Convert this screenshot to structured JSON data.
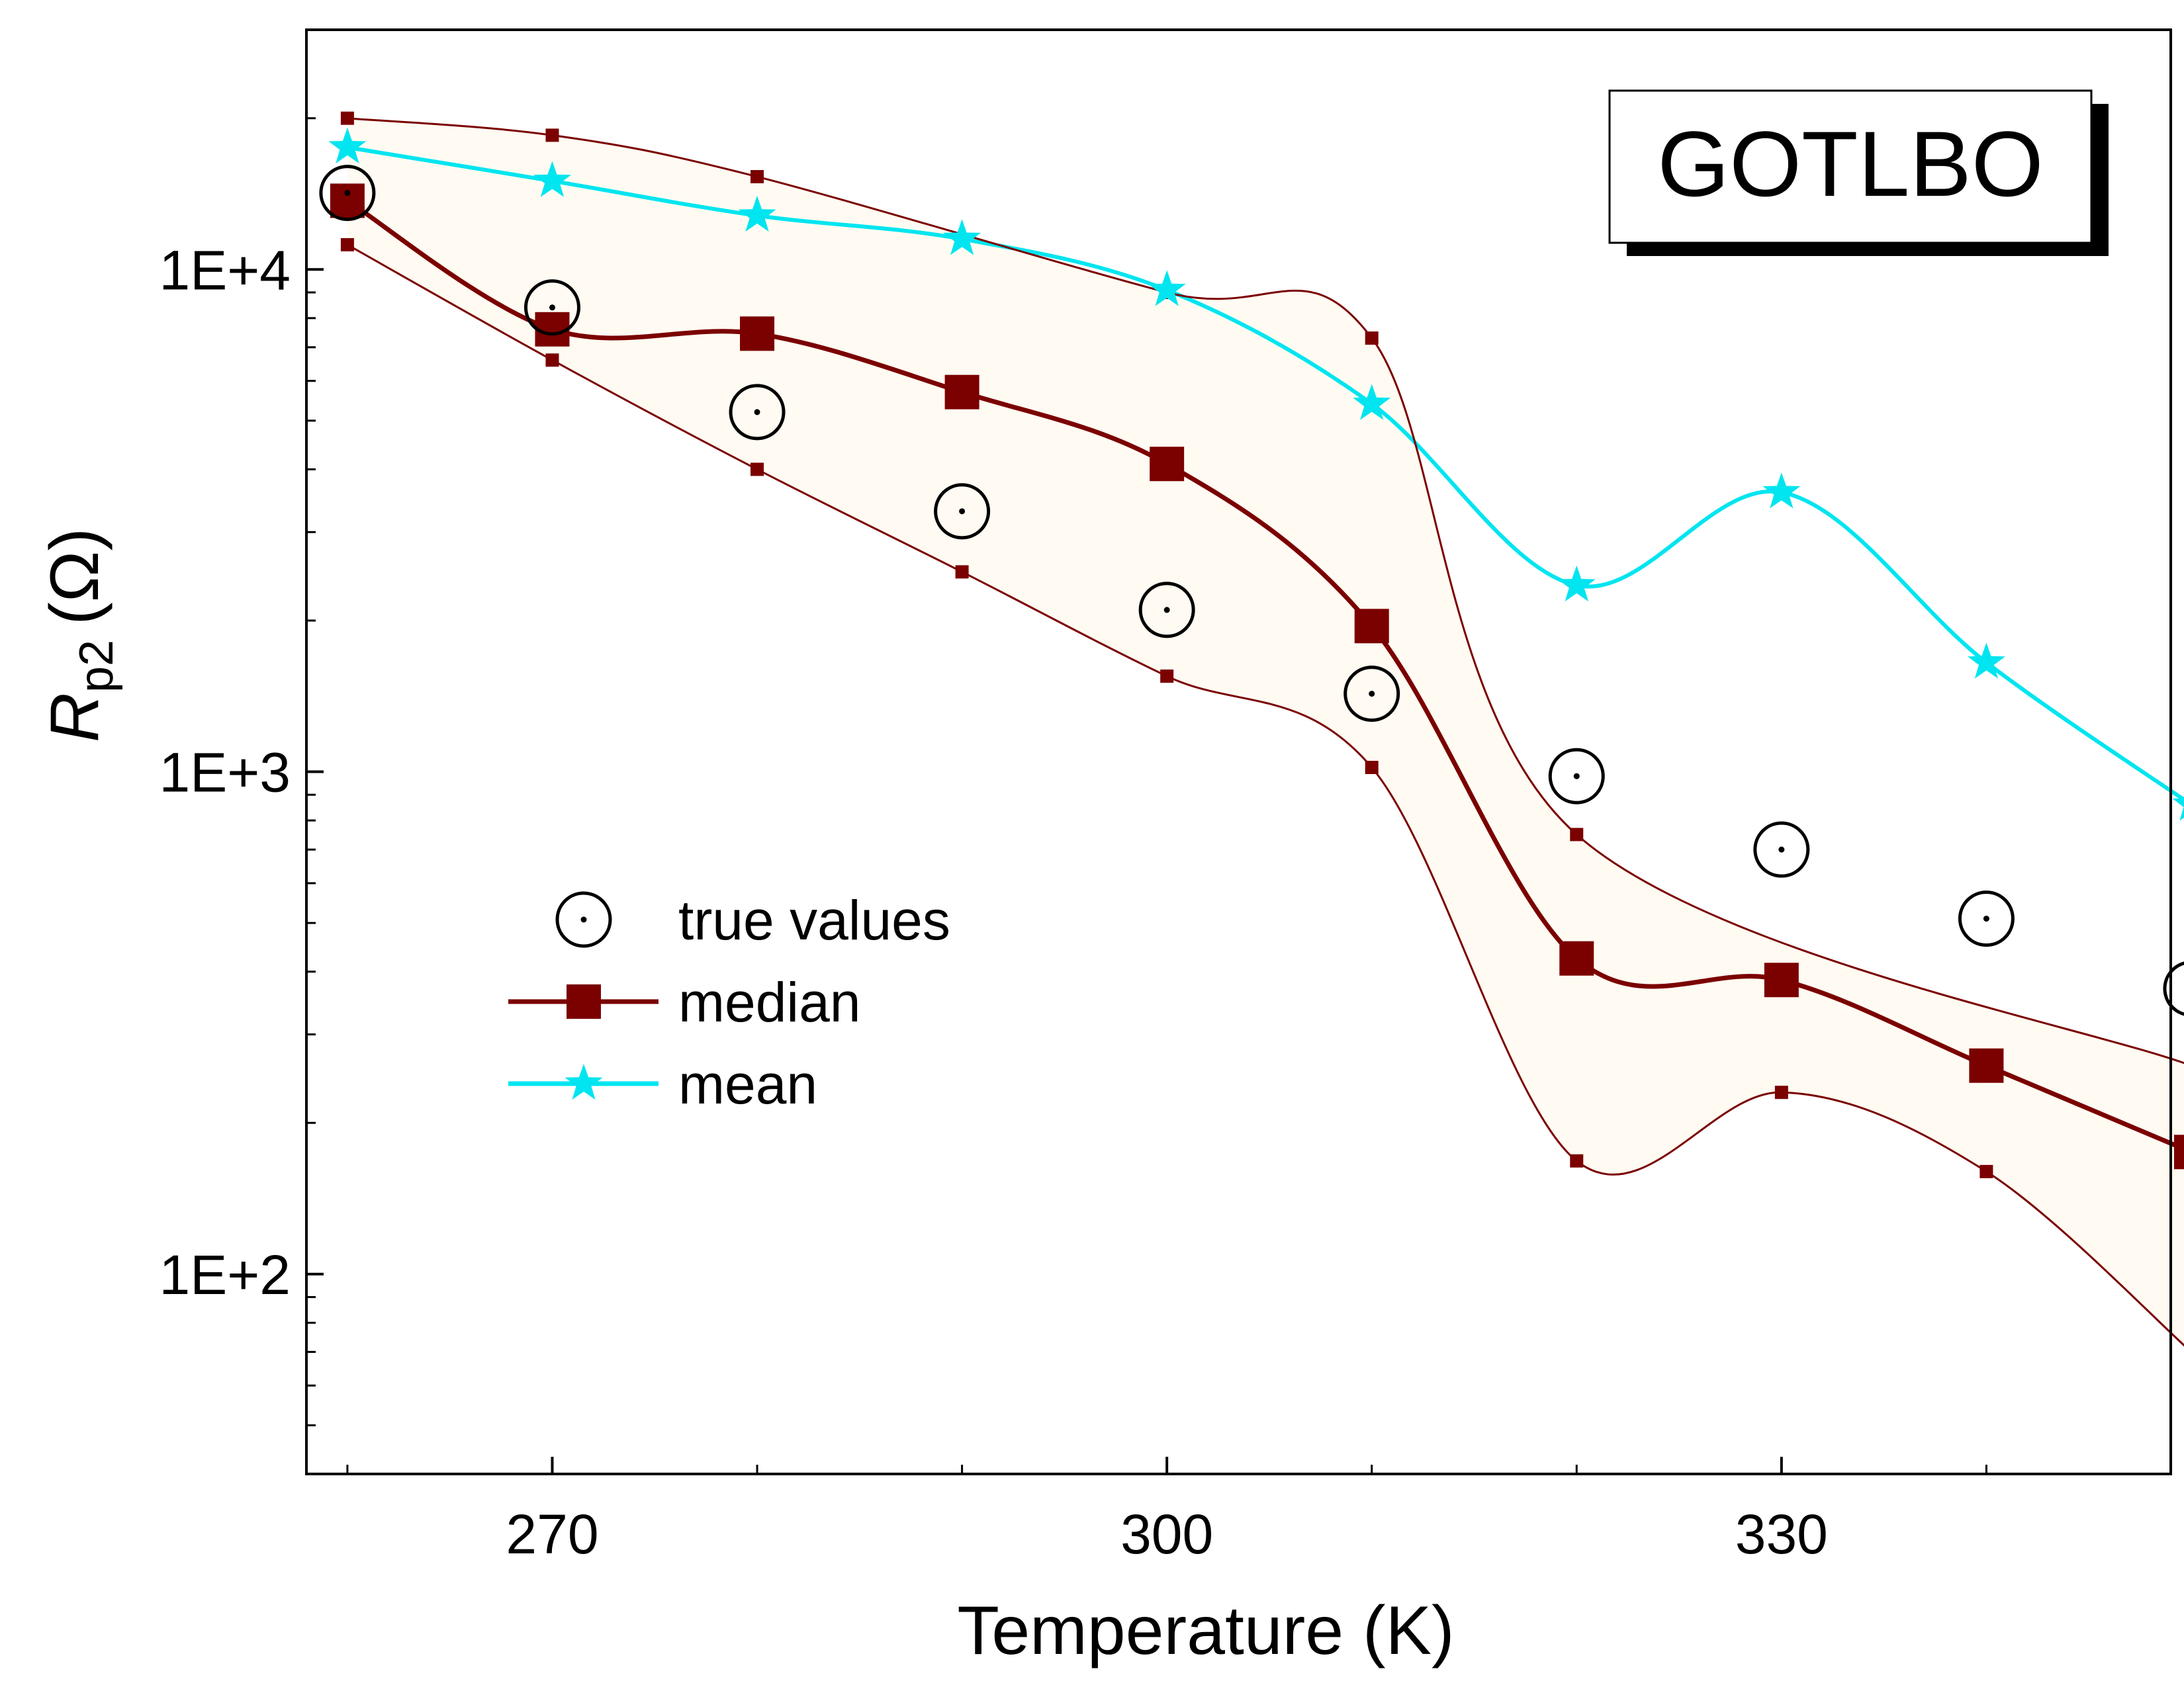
{
  "chart_data": {
    "type": "line",
    "title": "GOTLBO",
    "xlabel": "Temperature (K)",
    "ylabel_main": "R",
    "ylabel_sub": "p2",
    "ylabel_unit": "(Ω)",
    "x_scale": "linear",
    "y_scale": "log",
    "xlim": [
      258,
      349
    ],
    "ylim": [
      40,
      30000
    ],
    "x_ticks": [
      270,
      300,
      330
    ],
    "x_minor_ticks": [
      260,
      280,
      290,
      310,
      320,
      340
    ],
    "y_ticks": [
      {
        "value": 100,
        "label": "1E+2"
      },
      {
        "value": 1000,
        "label": "1E+3"
      },
      {
        "value": 10000,
        "label": "1E+4"
      }
    ],
    "x": [
      260,
      270,
      280,
      290,
      300,
      310,
      320,
      330,
      340,
      350
    ],
    "series": [
      {
        "name": "true values",
        "marker": "circle-dot",
        "color": "#000000",
        "values": [
          14200,
          8400,
          5200,
          3300,
          2100,
          1430,
          980,
          700,
          510,
          370
        ]
      },
      {
        "name": "median",
        "marker": "square",
        "color": "#7b0000",
        "values": [
          13700,
          7600,
          7450,
          5700,
          4100,
          1950,
          425,
          385,
          260,
          175
        ]
      },
      {
        "name": "mean",
        "marker": "star",
        "color": "#00e5f0",
        "values": [
          17500,
          15000,
          12800,
          11500,
          9100,
          5400,
          2350,
          3600,
          1650,
          860
        ]
      },
      {
        "name": "",
        "marker": "small-square",
        "color": "#7b0000",
        "role": "band-upper",
        "values": [
          20000,
          18500,
          15300,
          null,
          9000,
          7300,
          750,
          null,
          null,
          260
        ]
      },
      {
        "name": "",
        "marker": "small-square",
        "color": "#7b0000",
        "role": "band-lower",
        "values": [
          11200,
          6600,
          4000,
          2500,
          1550,
          1020,
          168,
          230,
          160,
          70
        ]
      }
    ],
    "legend_position": "center-left",
    "grid": false
  }
}
